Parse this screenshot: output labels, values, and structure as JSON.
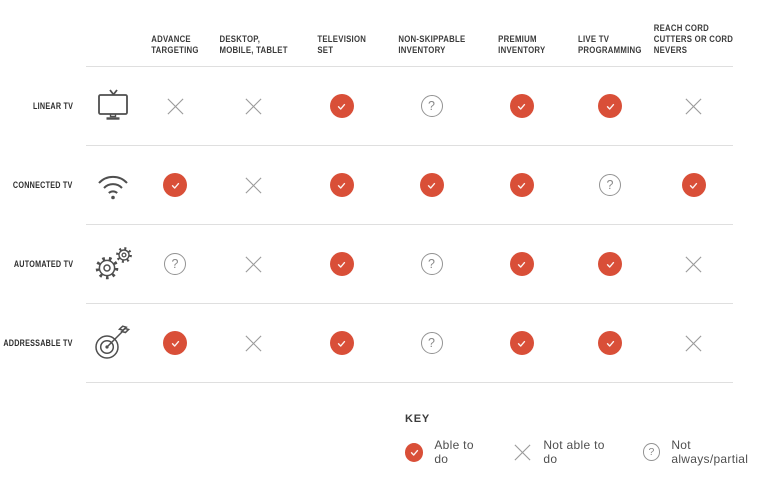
{
  "colors": {
    "accent_red": "#D94F38",
    "mark_gray": "#9B9B9B",
    "line_gray": "#DFDFDF",
    "header_text": "#3B3B3B",
    "icon_stroke": "#4F4F4F"
  },
  "table": {
    "columns": [
      {
        "lines": [
          "ADVANCE",
          "TARGETING"
        ]
      },
      {
        "lines": [
          "DESKTOP,",
          "MOBILE, TABLET"
        ]
      },
      {
        "lines": [
          "TELEVISION",
          "SET"
        ]
      },
      {
        "lines": [
          "NON-SKIPPABLE",
          "INVENTORY"
        ]
      },
      {
        "lines": [
          "PREMIUM",
          "INVENTORY"
        ]
      },
      {
        "lines": [
          "LIVE TV",
          "PROGRAMMING"
        ]
      },
      {
        "lines": [
          "REACH CORD",
          "CUTTERS OR CORD",
          "NEVERS"
        ]
      }
    ],
    "rows": [
      {
        "label": "LINEAR TV",
        "icon": "tv-icon",
        "values": [
          "no",
          "no",
          "yes",
          "partial",
          "yes",
          "yes",
          "no"
        ]
      },
      {
        "label": "CONNECTED TV",
        "icon": "wifi-icon",
        "values": [
          "yes",
          "no",
          "yes",
          "yes",
          "yes",
          "partial",
          "yes"
        ]
      },
      {
        "label": "AUTOMATED TV",
        "icon": "gears-icon",
        "values": [
          "partial",
          "no",
          "yes",
          "partial",
          "yes",
          "yes",
          "no"
        ]
      },
      {
        "label": "ADDRESSABLE TV",
        "icon": "target-icon",
        "values": [
          "yes",
          "no",
          "yes",
          "partial",
          "yes",
          "yes",
          "no"
        ]
      }
    ]
  },
  "key": {
    "title": "KEY",
    "items": [
      {
        "symbol": "yes",
        "label": "Able to do"
      },
      {
        "symbol": "no",
        "label": "Not able to do"
      },
      {
        "symbol": "partial",
        "label": "Not always/partial"
      }
    ]
  },
  "chart_data": {
    "type": "table",
    "title": "TV advertising capability comparison matrix",
    "columns": [
      "ADVANCE TARGETING",
      "DESKTOP, MOBILE, TABLET",
      "TELEVISION SET",
      "NON-SKIPPABLE INVENTORY",
      "PREMIUM INVENTORY",
      "LIVE TV PROGRAMMING",
      "REACH CORD CUTTERS OR CORD NEVERS"
    ],
    "rows": [
      {
        "name": "LINEAR TV",
        "values": [
          "Not able to do",
          "Not able to do",
          "Able to do",
          "Not always/partial",
          "Able to do",
          "Able to do",
          "Not able to do"
        ]
      },
      {
        "name": "CONNECTED TV",
        "values": [
          "Able to do",
          "Not able to do",
          "Able to do",
          "Able to do",
          "Able to do",
          "Not always/partial",
          "Able to do"
        ]
      },
      {
        "name": "AUTOMATED TV",
        "values": [
          "Not always/partial",
          "Not able to do",
          "Able to do",
          "Not always/partial",
          "Able to do",
          "Able to do",
          "Not able to do"
        ]
      },
      {
        "name": "ADDRESSABLE TV",
        "values": [
          "Able to do",
          "Not able to do",
          "Able to do",
          "Not always/partial",
          "Able to do",
          "Able to do",
          "Not able to do"
        ]
      }
    ]
  }
}
